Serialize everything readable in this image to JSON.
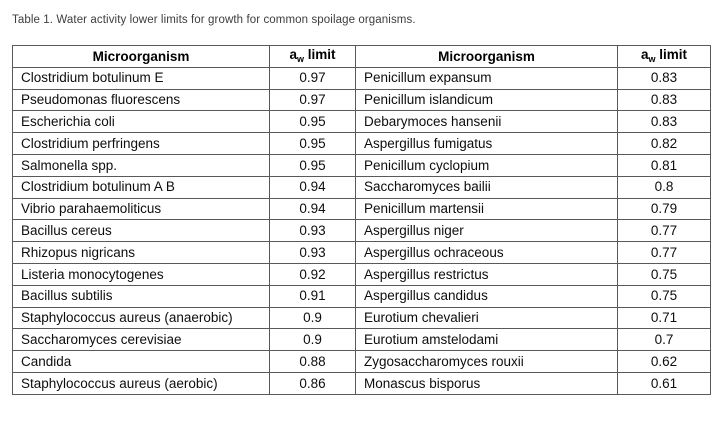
{
  "title": "Table 1. Water activity lower limits for growth for common spoilage organisms.",
  "colors": {
    "background": "#ffffff",
    "border": "#595959",
    "text": "#0d0d0d",
    "caption_text": "#3d3d3d"
  },
  "table": {
    "headers": {
      "microorganism": "Microorganism",
      "aw_prefix": "a",
      "aw_sub": "w",
      "aw_suffix": " limit"
    },
    "left_column": [
      {
        "organism": "Clostridium botulinum E",
        "aw": "0.97"
      },
      {
        "organism": "Pseudomonas fluorescens",
        "aw": "0.97"
      },
      {
        "organism": "Escherichia coli",
        "aw": "0.95"
      },
      {
        "organism": "Clostridium perfringens",
        "aw": "0.95"
      },
      {
        "organism": "Salmonella spp.",
        "aw": "0.95"
      },
      {
        "organism": "Clostridium botulinum A B",
        "aw": "0.94"
      },
      {
        "organism": "Vibrio parahaemoliticus",
        "aw": "0.94"
      },
      {
        "organism": "Bacillus cereus",
        "aw": "0.93"
      },
      {
        "organism": "Rhizopus nigricans",
        "aw": "0.93"
      },
      {
        "organism": "Listeria monocytogenes",
        "aw": "0.92"
      },
      {
        "organism": "Bacillus subtilis",
        "aw": "0.91"
      },
      {
        "organism": "Staphylococcus aureus (anaerobic)",
        "aw": "0.9"
      },
      {
        "organism": "Saccharomyces cerevisiae",
        "aw": "0.9"
      },
      {
        "organism": "Candida",
        "aw": "0.88"
      },
      {
        "organism": "Staphylococcus aureus (aerobic)",
        "aw": "0.86"
      }
    ],
    "right_column": [
      {
        "organism": "Penicillum expansum",
        "aw": "0.83"
      },
      {
        "organism": "Penicillum islandicum",
        "aw": "0.83"
      },
      {
        "organism": "Debarymoces hansenii",
        "aw": "0.83"
      },
      {
        "organism": "Aspergillus fumigatus",
        "aw": "0.82"
      },
      {
        "organism": "Penicillum cyclopium",
        "aw": "0.81"
      },
      {
        "organism": "Saccharomyces bailii",
        "aw": "0.8"
      },
      {
        "organism": "Penicillum martensii",
        "aw": "0.79"
      },
      {
        "organism": "Aspergillus niger",
        "aw": "0.77"
      },
      {
        "organism": "Aspergillus ochraceous",
        "aw": "0.77"
      },
      {
        "organism": "Aspergillus restrictus",
        "aw": "0.75"
      },
      {
        "organism": "Aspergillus candidus",
        "aw": "0.75"
      },
      {
        "organism": "Eurotium chevalieri",
        "aw": "0.71"
      },
      {
        "organism": "Eurotium amstelodami",
        "aw": "0.7"
      },
      {
        "organism": "Zygosaccharomyces rouxii",
        "aw": "0.62"
      },
      {
        "organism": "Monascus bisporus",
        "aw": "0.61"
      }
    ]
  }
}
